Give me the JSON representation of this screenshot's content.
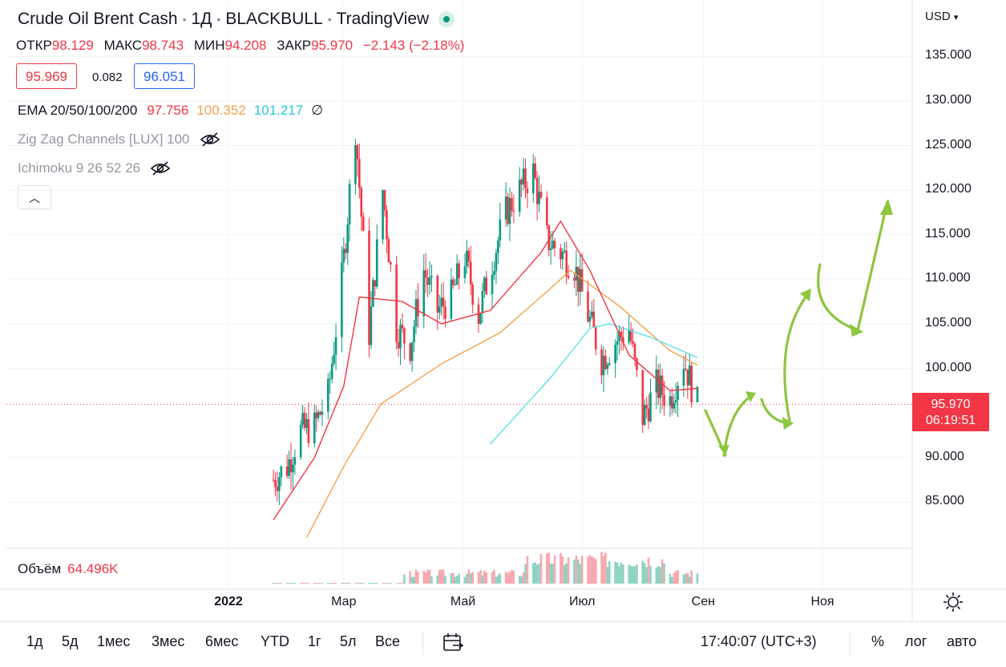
{
  "header": {
    "symbol": "Crude Oil Brent Cash",
    "interval": "1Д",
    "exchange": "BLACKBULL",
    "source": "TradingView",
    "currency": "USD"
  },
  "ohlc": {
    "open_label": "ОТКР",
    "open": "98.129",
    "high_label": "МАКС",
    "high": "98.743",
    "low_label": "МИН",
    "low": "94.208",
    "close_label": "ЗАКР",
    "close": "95.970",
    "change": "−2.143 (−2.18%)"
  },
  "quote": {
    "bid": "95.969",
    "spread": "0.082",
    "ask": "96.051"
  },
  "indicators": {
    "ema": {
      "label": "EMA 20/50/100/200",
      "v20": "97.756",
      "v50": "100.352",
      "v100": "101.217",
      "v200": "∅"
    },
    "zigzag": {
      "label": "Zig Zag Channels [LUX] 100"
    },
    "ichimoku": {
      "label": "Ichimoku 9 26 52 26"
    }
  },
  "volume": {
    "label": "Объём",
    "value": "64.496K"
  },
  "last_price": {
    "price": "95.970",
    "countdown": "06:19:51"
  },
  "bottom_bar": {
    "ranges": [
      "1д",
      "5д",
      "1мес",
      "3мес",
      "6мес",
      "YTD",
      "1г",
      "5л",
      "Все"
    ],
    "time": "17:40:07 (UTC+3)",
    "percent": "%",
    "log": "лог",
    "auto": "авто"
  },
  "colors": {
    "up": "#089981",
    "down": "#f23645",
    "ema20": "#f23645",
    "ema50": "#f5a04c",
    "ema100": "#5ce1e6",
    "arrows": "#8dc63f",
    "ask": "#2962ff"
  },
  "chart_data": {
    "type": "candlestick",
    "y_ticks": [
      "135.000",
      "130.000",
      "125.000",
      "120.000",
      "115.000",
      "110.000",
      "105.000",
      "100.000",
      "90.000",
      "85.000"
    ],
    "y_range": [
      80,
      137
    ],
    "x_ticks": [
      "2022",
      "Мар",
      "Май",
      "Июл",
      "Сен",
      "Ноя"
    ],
    "close_series": [
      {
        "date": "2022-01-24",
        "close": 87.5
      },
      {
        "date": "2022-01-31",
        "close": 89.0
      },
      {
        "date": "2022-02-07",
        "close": 93.0
      },
      {
        "date": "2022-02-14",
        "close": 93.5
      },
      {
        "date": "2022-02-21",
        "close": 97.0
      },
      {
        "date": "2022-02-28",
        "close": 110.0
      },
      {
        "date": "2022-03-07",
        "close": 127.0
      },
      {
        "date": "2022-03-14",
        "close": 104.0
      },
      {
        "date": "2022-03-21",
        "close": 120.0
      },
      {
        "date": "2022-03-28",
        "close": 104.5
      },
      {
        "date": "2022-04-04",
        "close": 102.5
      },
      {
        "date": "2022-04-11",
        "close": 111.0
      },
      {
        "date": "2022-04-18",
        "close": 106.5
      },
      {
        "date": "2022-04-25",
        "close": 108.0
      },
      {
        "date": "2022-05-02",
        "close": 112.5
      },
      {
        "date": "2022-05-09",
        "close": 106.0
      },
      {
        "date": "2022-05-16",
        "close": 112.0
      },
      {
        "date": "2022-05-23",
        "close": 117.5
      },
      {
        "date": "2022-05-30",
        "close": 120.0
      },
      {
        "date": "2022-06-06",
        "close": 122.0
      },
      {
        "date": "2022-06-13",
        "close": 114.5
      },
      {
        "date": "2022-06-20",
        "close": 113.0
      },
      {
        "date": "2022-06-27",
        "close": 111.5
      },
      {
        "date": "2022-07-04",
        "close": 106.0
      },
      {
        "date": "2022-07-11",
        "close": 101.0
      },
      {
        "date": "2022-07-18",
        "close": 103.0
      },
      {
        "date": "2022-07-25",
        "close": 104.5
      },
      {
        "date": "2022-08-01",
        "close": 94.5
      },
      {
        "date": "2022-08-08",
        "close": 98.0
      },
      {
        "date": "2022-08-15",
        "close": 96.5
      },
      {
        "date": "2022-08-22",
        "close": 101.0
      },
      {
        "date": "2022-08-29",
        "close": 95.97
      }
    ],
    "ema20_series": [
      {
        "date": "2022-01-24",
        "value": 83.0
      },
      {
        "date": "2022-02-14",
        "value": 90.0
      },
      {
        "date": "2022-03-01",
        "value": 98.0
      },
      {
        "date": "2022-03-09",
        "value": 108.0
      },
      {
        "date": "2022-03-31",
        "value": 107.5
      },
      {
        "date": "2022-04-20",
        "value": 105.0
      },
      {
        "date": "2022-05-15",
        "value": 106.5
      },
      {
        "date": "2022-06-10",
        "value": 113.0
      },
      {
        "date": "2022-06-20",
        "value": 116.5
      },
      {
        "date": "2022-07-05",
        "value": 111.0
      },
      {
        "date": "2022-07-25",
        "value": 101.5
      },
      {
        "date": "2022-08-15",
        "value": 97.5
      },
      {
        "date": "2022-08-29",
        "value": 97.756
      }
    ],
    "ema50_series": [
      {
        "date": "2022-02-10",
        "value": 81.0
      },
      {
        "date": "2022-03-01",
        "value": 89.0
      },
      {
        "date": "2022-03-20",
        "value": 96.0
      },
      {
        "date": "2022-04-20",
        "value": 100.5
      },
      {
        "date": "2022-05-20",
        "value": 104.0
      },
      {
        "date": "2022-06-15",
        "value": 109.0
      },
      {
        "date": "2022-06-25",
        "value": 111.0
      },
      {
        "date": "2022-07-20",
        "value": 107.0
      },
      {
        "date": "2022-08-15",
        "value": 102.0
      },
      {
        "date": "2022-08-29",
        "value": 100.352
      }
    ],
    "ema100_series": [
      {
        "date": "2022-05-15",
        "value": 91.5
      },
      {
        "date": "2022-06-15",
        "value": 99.0
      },
      {
        "date": "2022-07-05",
        "value": 104.5
      },
      {
        "date": "2022-07-15",
        "value": 105.0
      },
      {
        "date": "2022-08-05",
        "value": 103.5
      },
      {
        "date": "2022-08-29",
        "value": 101.217
      }
    ],
    "volume_profile": "low-then-high",
    "projected_arrows": "zigzag path upward to ~120 by late November"
  }
}
